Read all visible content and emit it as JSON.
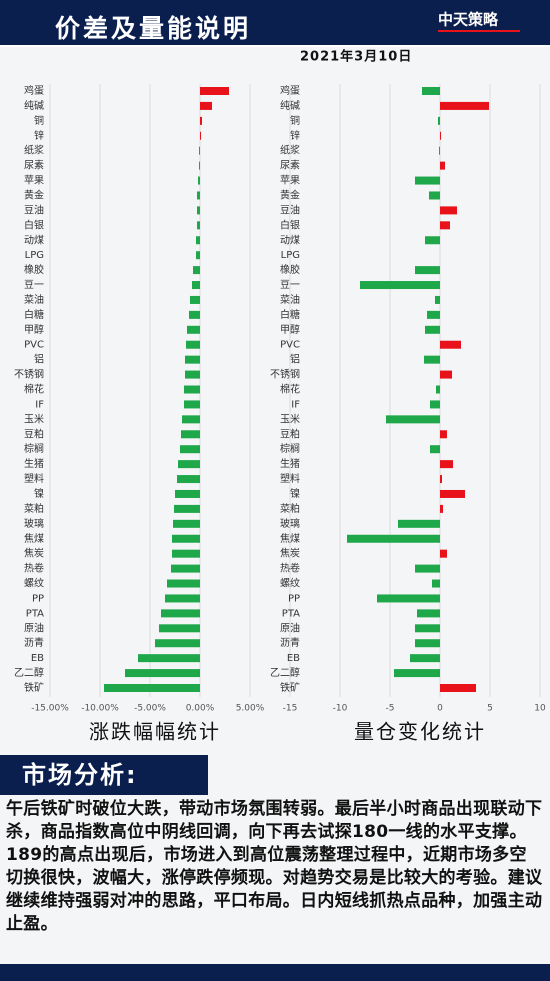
{
  "header": {
    "title": "价差及量能说明",
    "date": "2021年3月10日",
    "logo": "中天策略"
  },
  "chart_data": [
    {
      "type": "bar",
      "orientation": "horizontal",
      "xlabel": "涨跌幅幅统计",
      "categories": [
        "鸡蛋",
        "纯碱",
        "铜",
        "锌",
        "纸浆",
        "尿素",
        "苹果",
        "黄金",
        "豆油",
        "白银",
        "动煤",
        "LPG",
        "橡胶",
        "豆一",
        "菜油",
        "白糖",
        "甲醇",
        "PVC",
        "铝",
        "不锈钢",
        "棉花",
        "IF",
        "玉米",
        "豆粕",
        "棕榈",
        "生猪",
        "塑料",
        "镍",
        "菜粕",
        "玻璃",
        "焦煤",
        "焦炭",
        "热卷",
        "螺纹",
        "PP",
        "PTA",
        "原油",
        "沥青",
        "EB",
        "乙二醇",
        "铁矿"
      ],
      "values": [
        2.9,
        1.2,
        0.2,
        0.1,
        -0.1,
        -0.1,
        -0.2,
        -0.3,
        -0.3,
        -0.3,
        -0.4,
        -0.4,
        -0.7,
        -0.8,
        -1.0,
        -1.1,
        -1.3,
        -1.4,
        -1.5,
        -1.5,
        -1.6,
        -1.6,
        -1.8,
        -1.9,
        -2.0,
        -2.2,
        -2.3,
        -2.5,
        -2.6,
        -2.7,
        -2.8,
        -2.8,
        -2.9,
        -3.3,
        -3.5,
        -3.9,
        -4.1,
        -4.5,
        -6.2,
        -7.5,
        -9.6
      ],
      "xlim": [
        -15,
        5
      ],
      "xticks": [
        {
          "value": -15,
          "label": "-15.00%"
        },
        {
          "value": -10,
          "label": "-10.00%"
        },
        {
          "value": -5,
          "label": "-5.00%"
        },
        {
          "value": 0,
          "label": "0.00%"
        },
        {
          "value": 5,
          "label": "5.00%"
        }
      ],
      "grid": true,
      "positive_color": "#e8121b",
      "negative_color": "#1ea84a"
    },
    {
      "type": "bar",
      "orientation": "horizontal",
      "xlabel": "量仓变化统计",
      "categories": [
        "鸡蛋",
        "纯碱",
        "铜",
        "锌",
        "纸浆",
        "尿素",
        "苹果",
        "黄金",
        "豆油",
        "白银",
        "动煤",
        "LPG",
        "橡胶",
        "豆一",
        "菜油",
        "白糖",
        "甲醇",
        "PVC",
        "铝",
        "不锈钢",
        "棉花",
        "IF",
        "玉米",
        "豆粕",
        "棕榈",
        "生猪",
        "塑料",
        "镍",
        "菜粕",
        "玻璃",
        "焦煤",
        "焦炭",
        "热卷",
        "螺纹",
        "PP",
        "PTA",
        "原油",
        "沥青",
        "EB",
        "乙二醇",
        "铁矿"
      ],
      "values": [
        -1.8,
        4.9,
        -0.2,
        0.1,
        -0.1,
        0.5,
        -2.5,
        -1.1,
        1.7,
        1.0,
        -1.5,
        0,
        -2.5,
        -8.0,
        -0.5,
        -1.3,
        -1.5,
        2.1,
        -1.6,
        1.2,
        -0.4,
        -1.0,
        -5.4,
        0.7,
        -1.0,
        1.3,
        0.2,
        2.5,
        0.3,
        -4.2,
        -9.3,
        0.7,
        -2.5,
        -0.8,
        -6.3,
        -2.3,
        -2.5,
        -2.5,
        -3.0,
        -4.6,
        3.6
      ],
      "xlim": [
        -15,
        10
      ],
      "xticks": [
        -15,
        -10,
        -5,
        0,
        5,
        10
      ],
      "grid": true,
      "positive_color": "#e8121b",
      "negative_color": "#1ea84a"
    }
  ],
  "analysis": {
    "heading": "市场分析:",
    "text": "午后铁矿时破位大跌，带动市场氛围转弱。最后半小时商品出现联动下杀，商品指数高位中阴线回调，向下再去试探180一线的水平支撑。189的高点出现后，市场进入到高位震荡整理过程中，近期市场多空切换很快，波幅大，涨停跌停频现。对趋势交易是比较大的考验。建议继续维持强弱对冲的思路，平口布局。日内短线抓热点品种，加强主动止盈。"
  }
}
